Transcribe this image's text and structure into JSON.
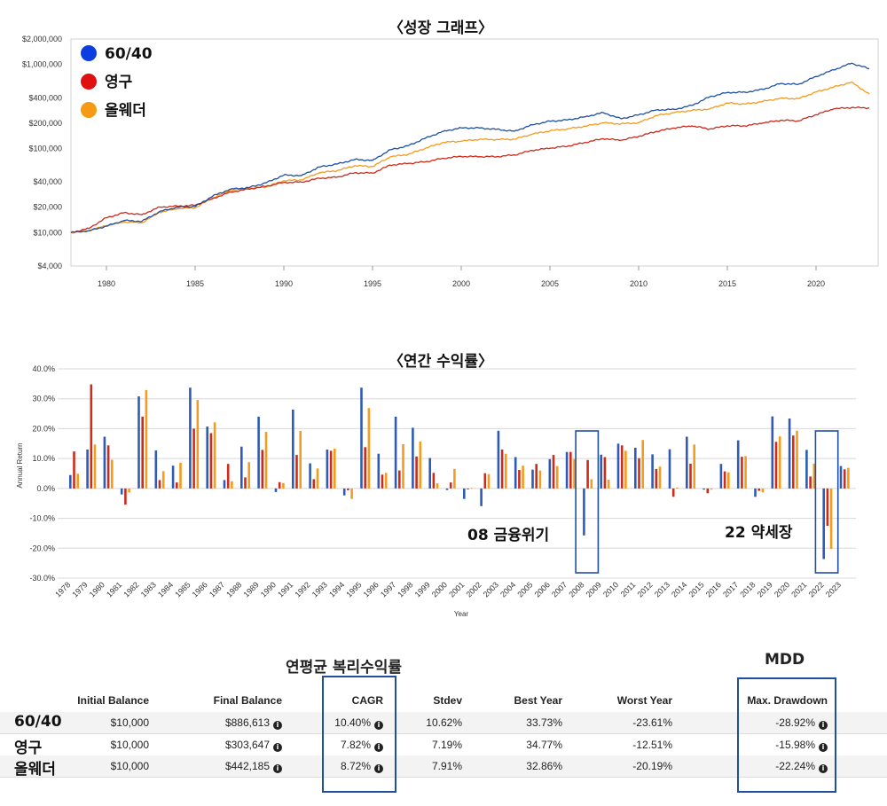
{
  "chart_data": [
    {
      "type": "line",
      "title": "〈성장 그래프〉",
      "y_scale": "log",
      "ylim": [
        4000,
        2000000
      ],
      "y_ticks": [
        2000000,
        1000000,
        400000,
        200000,
        100000,
        40000,
        20000,
        10000,
        4000
      ],
      "y_tick_labels": [
        "$2,000,000",
        "$1,000,000",
        "$400,000",
        "$200,000",
        "$100,000",
        "$40,000",
        "$20,000",
        "$10,000",
        "$4,000"
      ],
      "xlim": [
        1978,
        2023.5
      ],
      "x_ticks": [
        1980,
        1985,
        1990,
        1995,
        2000,
        2005,
        2010,
        2015,
        2020
      ],
      "x_tick_labels": [
        "1980",
        "1985",
        "1990",
        "1995",
        "2000",
        "2005",
        "2010",
        "2015",
        "2020"
      ],
      "legend_position": "top-left",
      "series": [
        {
          "name": "60/40",
          "color": "#1f4fa0",
          "legend_color": "#0b3de0",
          "x": [
            1978,
            1979,
            1980,
            1981,
            1982,
            1983,
            1984,
            1985,
            1986,
            1987,
            1988,
            1989,
            1990,
            1991,
            1992,
            1993,
            1994,
            1995,
            1996,
            1997,
            1998,
            1999,
            2000,
            2001,
            2002,
            2003,
            2004,
            2005,
            2006,
            2007,
            2008,
            2009,
            2010,
            2011,
            2012,
            2013,
            2014,
            2015,
            2016,
            2017,
            2018,
            2019,
            2020,
            2021,
            2022,
            2023
          ],
          "values": [
            10000,
            10500,
            11900,
            13900,
            13600,
            17800,
            20000,
            20400,
            27200,
            32900,
            34200,
            39000,
            48200,
            47600,
            60200,
            65200,
            73800,
            72100,
            96400,
            107400,
            133100,
            160100,
            175600,
            175100,
            168600,
            160200,
            191000,
            210600,
            218300,
            238200,
            266600,
            225300,
            250400,
            287000,
            291000,
            324400,
            409700,
            463000,
            465600,
            503500,
            590800,
            577800,
            716200,
            860700,
            1030000,
            886613
          ]
        },
        {
          "name": "영구",
          "color": "#cc2a1a",
          "legend_color": "#e01010",
          "x": [
            1978,
            1979,
            1980,
            1981,
            1982,
            1983,
            1984,
            1985,
            1986,
            1987,
            1988,
            1989,
            1990,
            1991,
            1992,
            1993,
            1994,
            1995,
            1996,
            1997,
            1998,
            1999,
            2000,
            2001,
            2002,
            2003,
            2004,
            2005,
            2006,
            2007,
            2008,
            2009,
            2010,
            2011,
            2012,
            2013,
            2014,
            2015,
            2016,
            2017,
            2018,
            2019,
            2020,
            2021,
            2022,
            2023
          ],
          "values": [
            10000,
            11200,
            15000,
            17200,
            16300,
            20100,
            20600,
            21100,
            25400,
            30300,
            32800,
            35500,
            39400,
            39800,
            44200,
            45500,
            51400,
            50900,
            63300,
            66300,
            69500,
            76400,
            80300,
            79800,
            79800,
            83700,
            94800,
            100600,
            106600,
            117900,
            130700,
            125000,
            139000,
            159400,
            175000,
            185300,
            170000,
            186000,
            185200,
            200800,
            216000,
            212800,
            251400,
            296000,
            306000,
            303647
          ]
        },
        {
          "name": "올웨더",
          "color": "#f39a1c",
          "legend_color": "#f49a14",
          "x": [
            1978,
            1979,
            1980,
            1981,
            1982,
            1983,
            1984,
            1985,
            1986,
            1987,
            1988,
            1989,
            1990,
            1991,
            1992,
            1993,
            1994,
            1995,
            1996,
            1997,
            1998,
            1999,
            2000,
            2001,
            2002,
            2003,
            2004,
            2005,
            2006,
            2007,
            2008,
            2009,
            2010,
            2011,
            2012,
            2013,
            2014,
            2015,
            2016,
            2017,
            2018,
            2019,
            2020,
            2021,
            2022,
            2023
          ],
          "values": [
            10000,
            10500,
            12100,
            13400,
            13100,
            17400,
            19200,
            19700,
            25900,
            31800,
            33400,
            34800,
            41400,
            42200,
            51400,
            54400,
            62400,
            60900,
            79500,
            84800,
            101000,
            118000,
            122000,
            128100,
            127800,
            128700,
            147800,
            162200,
            170900,
            183900,
            201600,
            196000,
            202200,
            246100,
            266100,
            283300,
            294700,
            346900,
            336500,
            361800,
            396300,
            390100,
            468100,
            536900,
            614000,
            442185
          ]
        }
      ]
    },
    {
      "type": "bar",
      "title": "〈연간 수익률〉",
      "ylabel": "Annual Return",
      "xlabel": "Year",
      "ylim": [
        -30,
        40
      ],
      "y_ticks": [
        40,
        30,
        20,
        10,
        0,
        -10,
        -20,
        -30
      ],
      "y_tick_labels": [
        "40.0%",
        "30.0%",
        "20.0%",
        "10.0%",
        "0.0%",
        "-10.0%",
        "-20.0%",
        "-30.0%"
      ],
      "categories": [
        "1978",
        "1979",
        "1980",
        "1981",
        "1982",
        "1983",
        "1984",
        "1985",
        "1986",
        "1987",
        "1988",
        "1989",
        "1990",
        "1991",
        "1992",
        "1993",
        "1994",
        "1995",
        "1996",
        "1997",
        "1998",
        "1999",
        "2000",
        "2001",
        "2002",
        "2003",
        "2004",
        "2005",
        "2006",
        "2007",
        "2008",
        "2009",
        "2010",
        "2011",
        "2012",
        "2013",
        "2014",
        "2015",
        "2016",
        "2017",
        "2018",
        "2019",
        "2020",
        "2021",
        "2022",
        "2023"
      ],
      "series": [
        {
          "name": "60/40",
          "color": "#2f5bb7",
          "values": [
            4.5,
            13,
            17.3,
            -2,
            30.8,
            12.7,
            7.6,
            33.7,
            20.7,
            2.8,
            14,
            24,
            -1.2,
            26.4,
            8.4,
            13,
            -2.3,
            33.7,
            11.6,
            24,
            20.3,
            10.2,
            -0.5,
            -3.5,
            -5.9,
            19.3,
            10.5,
            6.3,
            9.8,
            12.2,
            -15.7,
            11.3,
            15,
            13.6,
            11.4,
            13.1,
            17.3,
            -0.4,
            8.2,
            16.1,
            -2.8,
            24.1,
            23.4,
            12.9,
            -23.6,
            7.5
          ]
        },
        {
          "name": "영구",
          "color": "#cf2b1b",
          "values": [
            12.4,
            34.8,
            14.4,
            -5.4,
            24,
            2.8,
            2,
            20,
            18.5,
            8.2,
            3.7,
            12.9,
            2.1,
            11.2,
            3.1,
            12.6,
            -0.6,
            13.8,
            4.6,
            6,
            10.7,
            5.2,
            2,
            -0.3,
            5.1,
            13,
            6.2,
            8.2,
            11.2,
            12.2,
            9.5,
            10.5,
            14.4,
            10.1,
            6.5,
            -2.8,
            8.3,
            -1.6,
            5.7,
            10.6,
            -0.8,
            15.6,
            17.7,
            4,
            -12.5,
            6.4
          ]
        },
        {
          "name": "올웨더",
          "color": "#f59c1a",
          "values": [
            4.9,
            14.7,
            9.6,
            -1.3,
            32.9,
            5.8,
            8.6,
            29.6,
            22.1,
            2.4,
            8.8,
            18.9,
            1.8,
            19.2,
            6.7,
            13.3,
            -3.5,
            26.9,
            5.2,
            14.8,
            15.7,
            1.7,
            6.5,
            0.1,
            4.8,
            11.6,
            7.6,
            6,
            7.5,
            9.8,
            3.1,
            2.9,
            12.6,
            16.2,
            7.3,
            0.3,
            14.7,
            -0.4,
            5.4,
            10.8,
            -1.3,
            17.4,
            19.3,
            8.3,
            -20.2,
            6.9
          ]
        }
      ],
      "annotations": [
        {
          "text": "08 금융위기",
          "target_year": "2008"
        },
        {
          "text": "22 약세장",
          "target_year": "2022"
        }
      ]
    }
  ],
  "table": {
    "title": "연평균 복리수익률",
    "mdd_title": "MDD",
    "info_glyph": "i",
    "headers": {
      "initial": "Initial Balance",
      "final": "Final Balance",
      "cagr": "CAGR",
      "stdev": "Stdev",
      "best": "Best Year",
      "worst": "Worst Year",
      "mdd": "Max. Drawdown"
    },
    "rows": [
      {
        "name": "60/40",
        "initial": "$10,000",
        "final": "$886,613",
        "cagr": "10.40%",
        "stdev": "10.62%",
        "best": "33.73%",
        "worst": "-23.61%",
        "mdd": "-28.92%"
      },
      {
        "name": "영구",
        "initial": "$10,000",
        "final": "$303,647",
        "cagr": "7.82%",
        "stdev": "7.19%",
        "best": "34.77%",
        "worst": "-12.51%",
        "mdd": "-15.98%"
      },
      {
        "name": "올웨더",
        "initial": "$10,000",
        "final": "$442,185",
        "cagr": "8.72%",
        "stdev": "7.91%",
        "best": "32.86%",
        "worst": "-20.19%",
        "mdd": "-22.24%"
      }
    ]
  }
}
